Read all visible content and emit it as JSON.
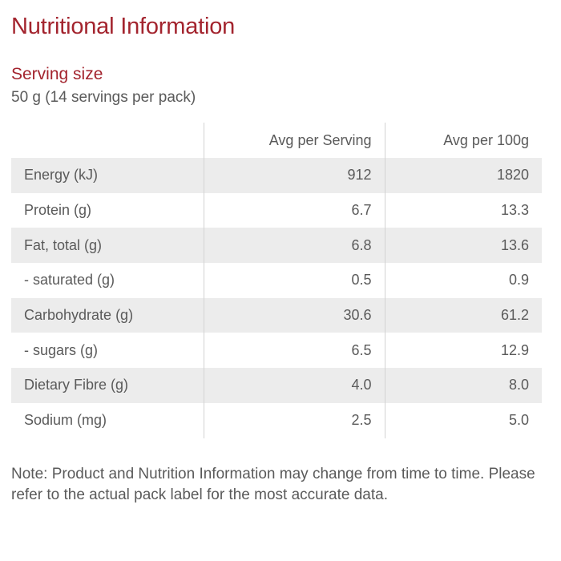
{
  "header": {
    "title": "Nutritional Information"
  },
  "serving": {
    "heading": "Serving size",
    "value": "50 g (14 servings per pack)"
  },
  "table": {
    "columns": [
      "",
      "Avg per Serving",
      "Avg per 100g"
    ],
    "rows": [
      {
        "nutrient": "Energy (kJ)",
        "per_serving": "912",
        "per_100g": "1820"
      },
      {
        "nutrient": "Protein (g)",
        "per_serving": "6.7",
        "per_100g": "13.3"
      },
      {
        "nutrient": "Fat, total (g)",
        "per_serving": "6.8",
        "per_100g": "13.6"
      },
      {
        "nutrient": "- saturated (g)",
        "per_serving": "0.5",
        "per_100g": "0.9"
      },
      {
        "nutrient": "Carbohydrate (g)",
        "per_serving": "30.6",
        "per_100g": "61.2"
      },
      {
        "nutrient": "- sugars (g)",
        "per_serving": "6.5",
        "per_100g": "12.9"
      },
      {
        "nutrient": "Dietary Fibre (g)",
        "per_serving": "4.0",
        "per_100g": "8.0"
      },
      {
        "nutrient": "Sodium (mg)",
        "per_serving": "2.5",
        "per_100g": "5.0"
      }
    ]
  },
  "footer": {
    "note": "Note: Product and Nutrition Information may change from time to time. Please refer to the actual pack label for the most accurate data."
  },
  "colors": {
    "accent": "#a3242e",
    "text": "#5a5a5a",
    "row_stripe": "#ececec",
    "divider": "#d3d3d3"
  }
}
